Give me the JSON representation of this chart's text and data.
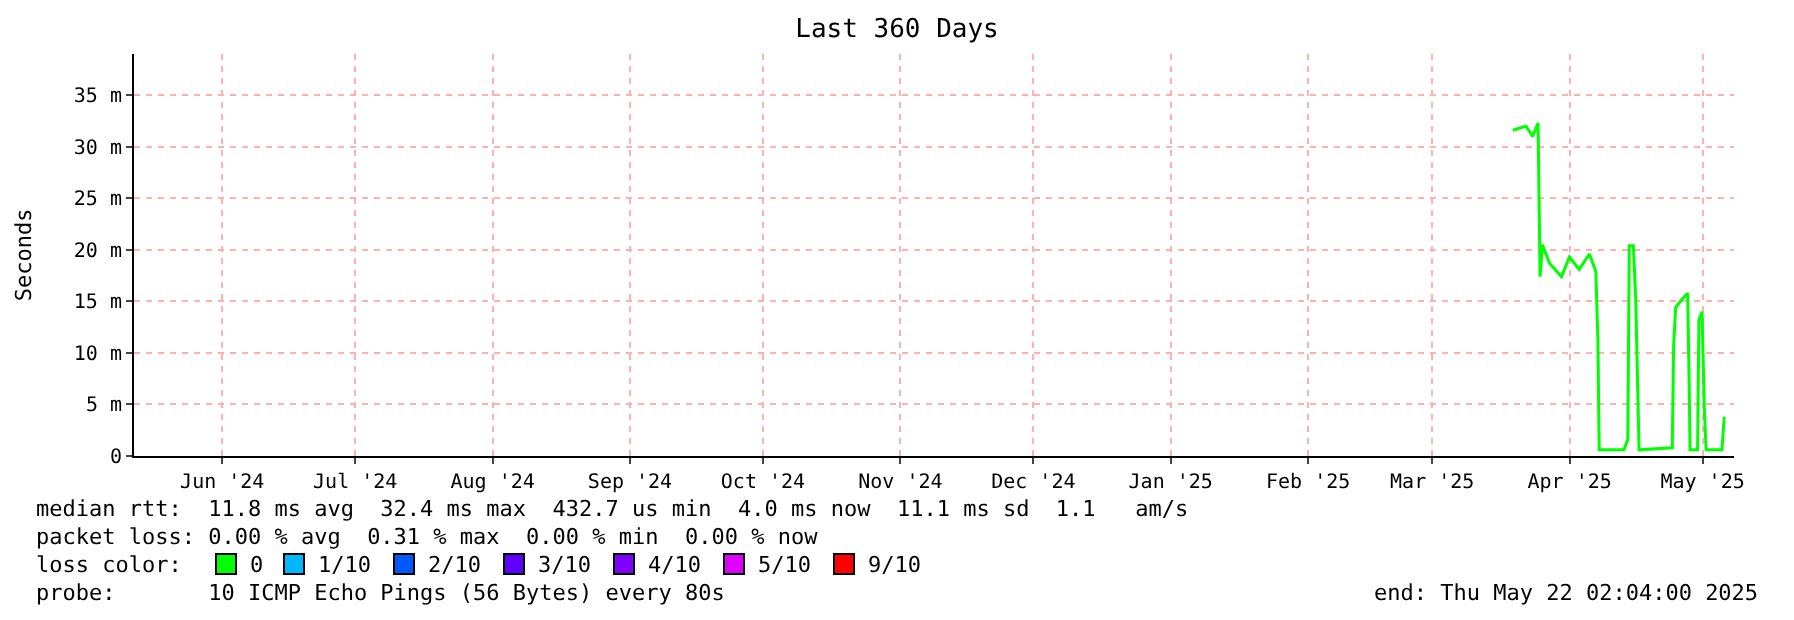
{
  "chart_data": {
    "type": "line",
    "title": "Last 360 Days",
    "ylabel": "Seconds",
    "xlim": [
      "2024-05-26T02:04",
      "2025-05-22T02:04"
    ],
    "xticks": [
      {
        "value": "2024-06-15",
        "label": "Jun '24"
      },
      {
        "value": "2024-07-15",
        "label": "Jul '24"
      },
      {
        "value": "2024-08-15",
        "label": "Aug '24"
      },
      {
        "value": "2024-09-15",
        "label": "Sep '24"
      },
      {
        "value": "2024-10-15",
        "label": "Oct '24"
      },
      {
        "value": "2024-11-15",
        "label": "Nov '24"
      },
      {
        "value": "2024-12-15",
        "label": "Dec '24"
      },
      {
        "value": "2025-01-15",
        "label": "Jan '25"
      },
      {
        "value": "2025-02-15",
        "label": "Feb '25"
      },
      {
        "value": "2025-03-15",
        "label": "Mar '25"
      },
      {
        "value": "2025-04-15",
        "label": "Apr '25"
      },
      {
        "value": "2025-05-15",
        "label": "May '25"
      }
    ],
    "ylim": [
      0,
      39
    ],
    "yticks": [
      0,
      {
        "value": 5,
        "label": "5 m"
      },
      {
        "value": 10,
        "label": "10 m"
      },
      {
        "value": 15,
        "label": "15 m"
      },
      {
        "value": 20,
        "label": "20 m"
      },
      {
        "value": 25,
        "label": "25 m"
      },
      {
        "value": 30,
        "label": "30 m"
      },
      {
        "value": 35,
        "label": "35 m"
      }
    ],
    "grid": true,
    "legend": "bottom",
    "legend_title": "loss color:",
    "series": [
      {
        "name": "0",
        "color": "#00ff00",
        "x": [
          "2025-04-02T04:00",
          "2025-04-05T04:00",
          "2025-04-06T16:00",
          "2025-04-07T21:00",
          "2025-04-08T08:00",
          "2025-04-08T21:00",
          "2025-04-10T11:00",
          "2025-04-13T04:00",
          "2025-04-14T23:00",
          "2025-04-17T04:00",
          "2025-04-19T11:00",
          "2025-04-20T22:00",
          "2025-04-21T09:00",
          "2025-04-21T16:00",
          "2025-04-27T06:00",
          "2025-04-28T03:00",
          "2025-04-28T11:00",
          "2025-04-29T09:00",
          "2025-04-29T22:00",
          "2025-04-30T16:00",
          "2025-05-08T04:00",
          "2025-05-08T11:00",
          "2025-05-08T22:00",
          "2025-05-10T09:00",
          "2025-05-11T15:00",
          "2025-05-11T23:00",
          "2025-05-12T04:00",
          "2025-05-13T21:00",
          "2025-05-14T04:00",
          "2025-05-14T21:00",
          "2025-05-15T09:00",
          "2025-05-15T19:00",
          "2025-05-19T09:00",
          "2025-05-19T21:00"
        ],
        "values": [
          31.6,
          32.0,
          31.0,
          32.3,
          17.4,
          20.5,
          18.7,
          17.4,
          19.3,
          18.1,
          19.6,
          17.9,
          11.3,
          0.6,
          0.6,
          1.6,
          20.4,
          20.4,
          15.2,
          0.6,
          0.8,
          10.6,
          14.4,
          15.2,
          15.8,
          7.4,
          0.6,
          0.6,
          13.2,
          14.0,
          4.8,
          0.6,
          0.6,
          3.8
        ]
      },
      {
        "name": "1/10",
        "color": "#00b8ff"
      },
      {
        "name": "2/10",
        "color": "#0059ff"
      },
      {
        "name": "3/10",
        "color": "#5e00ff"
      },
      {
        "name": "4/10",
        "color": "#7e00ff"
      },
      {
        "name": "5/10",
        "color": "#dd00ff"
      },
      {
        "name": "9/10",
        "color": "#ff0000"
      }
    ],
    "annotations": [
      "median rtt:  11.8 ms avg  32.4 ms max  432.7 us min  4.0 ms now  11.1 ms sd  1.1   am/s",
      "packet loss: 0.00 % avg  0.31 % max  0.00 % min  0.00 % now",
      "probe:       10 ICMP Echo Pings (56 Bytes) every 80s",
      "end: Thu May 22 02:04:00 2025"
    ]
  }
}
